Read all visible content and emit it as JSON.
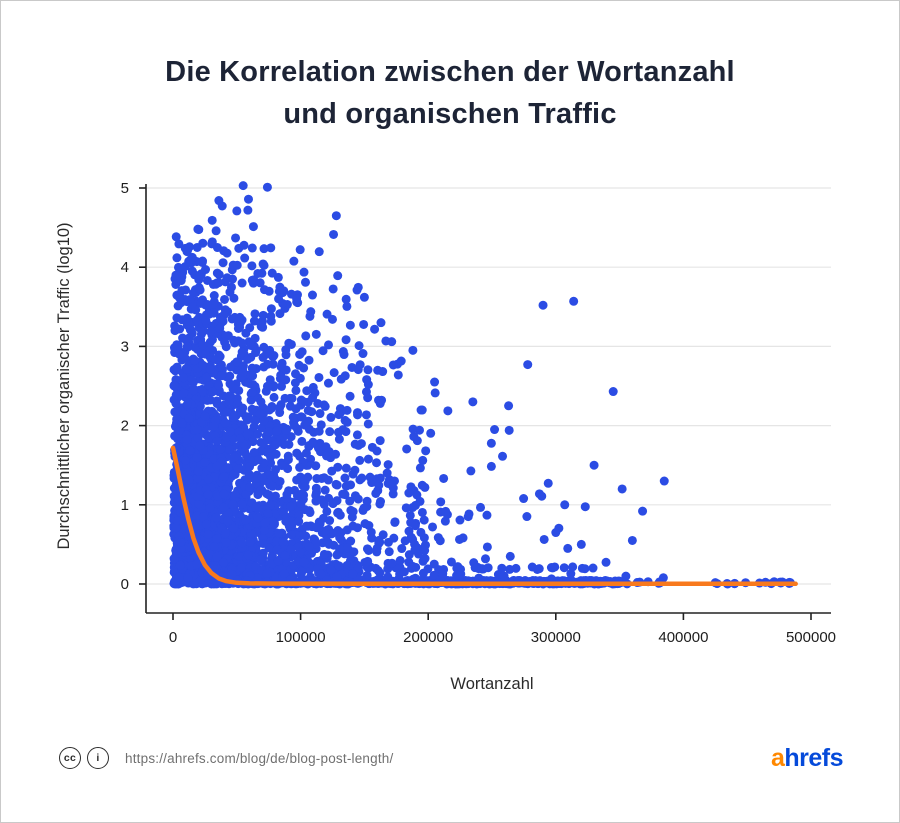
{
  "title": {
    "line1": "Die Korrelation zwischen der Wortanzahl",
    "line2": "und organischen Traffic"
  },
  "footer": {
    "cc_label": "cc",
    "info_label": "i",
    "url": "https://ahrefs.com/blog/de/blog-post-length/",
    "logo_a": "a",
    "logo_rest": "hrefs"
  },
  "colors": {
    "scatter": "#2b4ce4",
    "trend": "#f8791d",
    "grid": "#e5e5e5",
    "axis": "#222222",
    "title": "#1d2436",
    "logo_orange": "#ff8800",
    "logo_blue": "#054ada"
  },
  "chart_data": {
    "type": "scatter",
    "title": "Die Korrelation zwischen der Wortanzahl und organischen Traffic",
    "xlabel": "Wortanzahl",
    "ylabel": "Durchschnittlicher organischer Traffic (log10)",
    "xlim": [
      0,
      500000
    ],
    "ylim": [
      0,
      5
    ],
    "x_ticks": [
      0,
      100000,
      200000,
      300000,
      400000,
      500000
    ],
    "y_ticks": [
      0,
      1,
      2,
      3,
      4,
      5
    ],
    "grid": "horizontal",
    "legend": "none",
    "point_color": "#2b4ce4",
    "point_radius": 4.5,
    "trend_color": "#f8791d",
    "trend_width": 4.5,
    "trend_line": [
      [
        0,
        1.72
      ],
      [
        4000,
        1.42
      ],
      [
        8000,
        1.1
      ],
      [
        12000,
        0.82
      ],
      [
        16000,
        0.58
      ],
      [
        20000,
        0.4
      ],
      [
        25000,
        0.24
      ],
      [
        30000,
        0.14
      ],
      [
        36000,
        0.07
      ],
      [
        42000,
        0.035
      ],
      [
        50000,
        0.015
      ],
      [
        60000,
        0.008
      ],
      [
        80000,
        0.005
      ],
      [
        150000,
        0.004
      ],
      [
        300000,
        0.003
      ],
      [
        488000,
        0.003
      ]
    ],
    "scatter_cloud": {
      "seed": 11,
      "n_points": 2600,
      "x_min_offset": 600,
      "x_exponential_scale": 58000,
      "x_max": 390000,
      "envelope": [
        [
          0,
          4.75
        ],
        [
          60000,
          5.05
        ],
        [
          90000,
          4.8
        ],
        [
          130000,
          4.7
        ],
        [
          160000,
          3.7
        ],
        [
          200000,
          3.0
        ],
        [
          250000,
          2.4
        ],
        [
          300000,
          2.2
        ],
        [
          350000,
          1.6
        ],
        [
          390000,
          1.0
        ]
      ],
      "y_min": 0.02
    },
    "baseline_band": {
      "n_points": 760,
      "x_min": 500,
      "x_max": 352000,
      "y_max": 0.045
    },
    "second_band": {
      "n_points": 70,
      "x_min": 2000,
      "x_max": 330000,
      "y": 0.2,
      "y_jitter": 0.02
    },
    "sparse_tail": {
      "n_points": 26,
      "x_min": 352000,
      "x_max": 490000,
      "y_max": 0.03
    },
    "outliers": [
      [
        55000,
        5.03
      ],
      [
        74000,
        5.01
      ],
      [
        128000,
        4.65
      ],
      [
        150000,
        3.62
      ],
      [
        163000,
        3.3
      ],
      [
        188000,
        2.95
      ],
      [
        205000,
        2.55
      ],
      [
        235000,
        2.3
      ],
      [
        252000,
        1.95
      ],
      [
        263000,
        2.25
      ],
      [
        278000,
        2.77
      ],
      [
        290000,
        3.52
      ],
      [
        314000,
        3.57
      ],
      [
        307000,
        1.0
      ],
      [
        330000,
        1.5
      ],
      [
        345000,
        2.43
      ],
      [
        352000,
        1.2
      ],
      [
        360000,
        0.55
      ],
      [
        368000,
        0.92
      ],
      [
        385000,
        1.3
      ],
      [
        300000,
        0.65
      ],
      [
        320000,
        0.5
      ]
    ]
  }
}
